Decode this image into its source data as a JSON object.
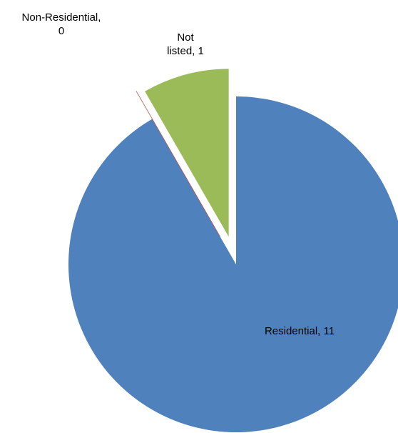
{
  "chart_data": {
    "type": "pie",
    "title": "",
    "slices": [
      {
        "label": "Residential",
        "value": 11,
        "color": "#4F81BD",
        "label_text": [
          "Residential, 11"
        ]
      },
      {
        "label": "Non-Residential",
        "value": 0,
        "color": "#C0504D",
        "label_text": [
          "Non-Residential,",
          "0"
        ]
      },
      {
        "label": "Not listed",
        "value": 1,
        "color": "#9BBB59",
        "label_text": [
          "Not",
          "listed, 1"
        ]
      }
    ],
    "exploded": true,
    "legend": "none"
  }
}
